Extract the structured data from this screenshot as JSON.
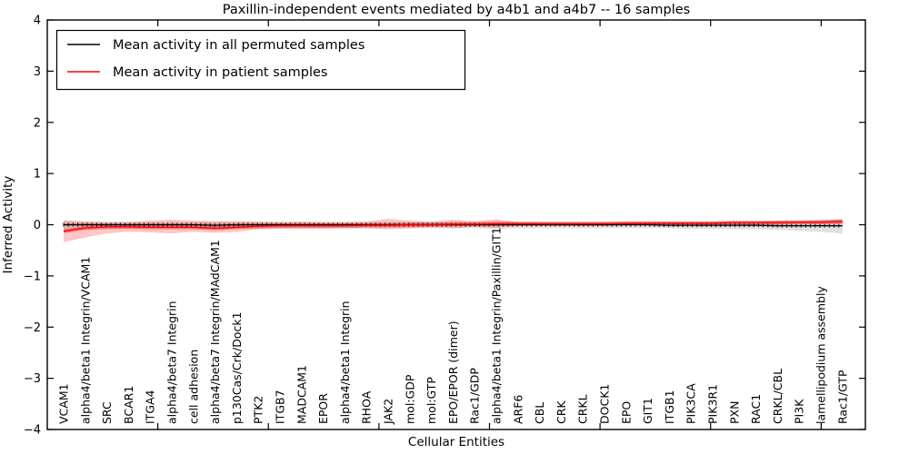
{
  "figure": {
    "title": "Paxillin-independent events mediated by a4b1 and a4b7 -- 16 samples",
    "xlabel": "Cellular Entities",
    "ylabel": "Inferred Activity"
  },
  "legend": {
    "entries": [
      {
        "label": "Mean activity in all permuted samples",
        "color": "#000000"
      },
      {
        "label": "Mean activity in patient samples",
        "color": "#ff0000"
      }
    ]
  },
  "chart_data": {
    "type": "line",
    "title": "Paxillin-independent events mediated by a4b1 and a4b7 -- 16 samples",
    "xlabel": "Cellular Entities",
    "ylabel": "Inferred Activity",
    "ylim": [
      -4,
      4
    ],
    "grid": false,
    "legend_position": "upper left",
    "yticks": [
      "4",
      "3",
      "2",
      "1",
      "0",
      "−1",
      "−2",
      "−3",
      "−4"
    ],
    "categories": [
      "VCAM1",
      "alpha4/beta1 Integrin/VCAM1",
      "SRC",
      "BCAR1",
      "ITGA4",
      "alpha4/beta7 Integrin",
      "cell adhesion",
      "alpha4/beta7 Integrin/MAdCAM1",
      "p130Cas/Crk/Dock1",
      "PTK2",
      "ITGB7",
      "MADCAM1",
      "EPOR",
      "alpha4/beta1 Integrin",
      "RHOA",
      "JAK2",
      "mol:GDP",
      "mol:GTP",
      "EPO/EPOR (dimer)",
      "Rac1/GDP",
      "alpha4/beta1 Integrin/Paxillin/GIT1",
      "ARF6",
      "CBL",
      "CRK",
      "CRKL",
      "DOCK1",
      "EPO",
      "GIT1",
      "ITGB1",
      "PIK3CA",
      "PIK3R1",
      "PXN",
      "RAC1",
      "CRKL/CBL",
      "PI3K",
      "lamellipodium assembly",
      "Rac1/GTP"
    ],
    "series": [
      {
        "name": "Mean activity in all permuted samples",
        "color": "#000000",
        "values": [
          0.0,
          0.0,
          0.0,
          0.0,
          0.0,
          0.0,
          0.0,
          -0.01,
          0.0,
          0.0,
          0.0,
          0.0,
          0.0,
          0.0,
          0.0,
          0.0,
          0.0,
          0.0,
          0.0,
          0.0,
          0.0,
          0.0,
          0.0,
          0.0,
          0.0,
          0.0,
          0.0,
          0.0,
          -0.01,
          -0.01,
          -0.01,
          -0.01,
          -0.01,
          -0.02,
          -0.02,
          -0.02,
          -0.02
        ]
      },
      {
        "name": "Mean activity in patient samples",
        "color": "#ff0000",
        "values": [
          -0.13,
          -0.06,
          -0.04,
          -0.04,
          -0.05,
          -0.05,
          -0.05,
          -0.07,
          -0.05,
          -0.03,
          -0.02,
          -0.02,
          -0.02,
          -0.02,
          -0.01,
          -0.01,
          0.0,
          0.0,
          0.01,
          0.01,
          0.02,
          0.02,
          0.02,
          0.02,
          0.02,
          0.02,
          0.03,
          0.03,
          0.03,
          0.03,
          0.03,
          0.04,
          0.04,
          0.04,
          0.05,
          0.05,
          0.06
        ]
      }
    ],
    "bands": [
      {
        "name": "permuted-samples-range",
        "color": "rgba(0,0,0,0.12)",
        "core_color": "rgba(0,0,0,0.10)",
        "upper": [
          0.07,
          0.07,
          0.06,
          0.06,
          0.06,
          0.06,
          0.06,
          0.06,
          0.06,
          0.06,
          0.06,
          0.06,
          0.06,
          0.06,
          0.06,
          0.06,
          0.06,
          0.06,
          0.06,
          0.06,
          0.07,
          0.06,
          0.06,
          0.06,
          0.06,
          0.06,
          0.06,
          0.06,
          0.06,
          0.06,
          0.06,
          0.07,
          0.07,
          0.08,
          0.08,
          0.09,
          0.1
        ],
        "lower": [
          -0.12,
          -0.1,
          -0.09,
          -0.08,
          -0.08,
          -0.08,
          -0.08,
          -0.09,
          -0.08,
          -0.08,
          -0.07,
          -0.07,
          -0.07,
          -0.07,
          -0.07,
          -0.07,
          -0.07,
          -0.07,
          -0.07,
          -0.07,
          -0.08,
          -0.07,
          -0.07,
          -0.07,
          -0.07,
          -0.07,
          -0.07,
          -0.07,
          -0.07,
          -0.08,
          -0.08,
          -0.09,
          -0.09,
          -0.1,
          -0.12,
          -0.14,
          -0.17
        ]
      },
      {
        "name": "patient-samples-range",
        "color": "rgba(255,0,0,0.22)",
        "core_color": "rgba(255,0,0,0.30)",
        "upper": [
          0.09,
          0.06,
          0.05,
          0.05,
          0.08,
          0.1,
          0.08,
          0.07,
          0.07,
          0.06,
          0.05,
          0.06,
          0.05,
          0.05,
          0.06,
          0.12,
          0.08,
          0.06,
          0.1,
          0.07,
          0.11,
          0.05,
          0.04,
          0.04,
          0.04,
          0.04,
          0.05,
          0.05,
          0.05,
          0.05,
          0.06,
          0.06,
          0.06,
          0.08,
          0.07,
          0.09,
          0.11
        ],
        "lower": [
          -0.34,
          -0.25,
          -0.17,
          -0.14,
          -0.15,
          -0.17,
          -0.14,
          -0.16,
          -0.14,
          -0.09,
          -0.08,
          -0.08,
          -0.08,
          -0.07,
          -0.07,
          -0.09,
          -0.07,
          -0.05,
          -0.07,
          -0.04,
          -0.06,
          -0.02,
          -0.02,
          -0.02,
          -0.02,
          -0.02,
          -0.01,
          -0.01,
          -0.01,
          -0.01,
          0.0,
          0.0,
          0.0,
          0.0,
          0.01,
          0.01,
          0.01
        ]
      }
    ]
  }
}
